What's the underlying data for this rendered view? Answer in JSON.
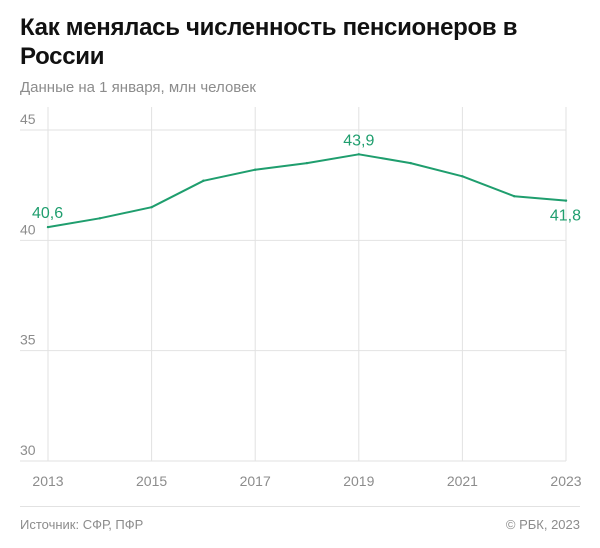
{
  "header": {
    "title": "Как менялась численность пенсионеров в России",
    "subtitle": "Данные на 1 января, млн человек"
  },
  "footer": {
    "source": "Источник: СФР, ПФР",
    "copyright": "© РБК, 2023"
  },
  "colors": {
    "line": "#1f9e6e",
    "grid": "#e2e2e2",
    "axis_text": "#8c8c8c"
  },
  "chart_data": {
    "type": "line",
    "x": [
      2013,
      2014,
      2015,
      2016,
      2017,
      2018,
      2019,
      2020,
      2021,
      2022,
      2023
    ],
    "series": [
      {
        "values": [
          40.6,
          41.0,
          41.5,
          42.7,
          43.2,
          43.5,
          43.9,
          43.5,
          42.9,
          42.0,
          41.8
        ]
      }
    ],
    "xlim": [
      2013,
      2023
    ],
    "ylim": [
      30,
      45
    ],
    "xticks": [
      "2013",
      "2015",
      "2017",
      "2019",
      "2021",
      "2023"
    ],
    "yticks": [
      "30",
      "35",
      "40",
      "45"
    ],
    "data_labels": [
      {
        "x": 2013,
        "text": "40,6"
      },
      {
        "x": 2019,
        "text": "43,9"
      },
      {
        "x": 2023,
        "text": "41,8"
      }
    ],
    "grid": true,
    "legend": "none"
  }
}
